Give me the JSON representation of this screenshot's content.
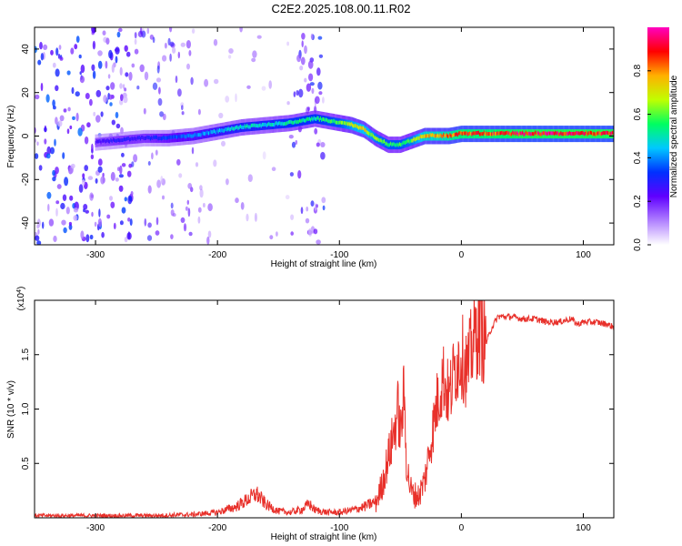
{
  "figure": {
    "title": "C2E2.2025.108.00.11.R02"
  },
  "chart_data": [
    {
      "type": "heatmap",
      "title": "C2E2.2025.108.00.11.R02",
      "xlabel": "Height of straight line (km)",
      "ylabel": "Frequency (Hz)",
      "xlim": [
        -350,
        125
      ],
      "ylim": [
        -50,
        50
      ],
      "x_ticks": [
        -300,
        -200,
        -100,
        0,
        100
      ],
      "y_ticks": [
        -40,
        -20,
        0,
        20,
        40
      ],
      "colorbar": {
        "label": "Normalized spectral amplitude",
        "range": [
          0,
          1
        ],
        "ticks": [
          "0.0",
          "0.2",
          "0.4",
          "0.6",
          "0.8"
        ],
        "colormap": [
          "#ffffff",
          "#b080ff",
          "#6000ff",
          "#0030ff",
          "#00c8ff",
          "#00ff60",
          "#c0ff00",
          "#ffb000",
          "#ff0000",
          "#ff00c0"
        ]
      },
      "ridge": {
        "x": [
          -300,
          -280,
          -260,
          -240,
          -220,
          -200,
          -180,
          -160,
          -140,
          -120,
          -100,
          -90,
          -80,
          -70,
          -60,
          -50,
          -40,
          -30,
          -20,
          -10,
          0,
          20,
          50,
          80,
          100,
          125
        ],
        "y": [
          -3,
          -2,
          -1,
          -1,
          0,
          2,
          4,
          5,
          6,
          8,
          6,
          5,
          3,
          -1,
          -4,
          -4,
          -2,
          0,
          0,
          0,
          1,
          1,
          1,
          1,
          1,
          1
        ],
        "amplitude": [
          0.25,
          0.3,
          0.3,
          0.35,
          0.4,
          0.45,
          0.5,
          0.5,
          0.55,
          0.55,
          0.6,
          0.7,
          0.75,
          0.65,
          0.6,
          0.6,
          0.65,
          0.8,
          0.8,
          0.85,
          0.9,
          0.9,
          0.95,
          0.95,
          0.95,
          0.95
        ]
      },
      "noise_regions": [
        {
          "x_range": [
            -350,
            -270
          ],
          "density": 0.9
        },
        {
          "x_range": [
            -270,
            -220
          ],
          "density": 0.5
        },
        {
          "x_range": [
            -220,
            -180
          ],
          "density": 0.2
        },
        {
          "x_range": [
            -180,
            -140
          ],
          "density": 0.15
        },
        {
          "x_range": [
            -140,
            -112
          ],
          "density": 0.7
        }
      ]
    },
    {
      "type": "line",
      "xlabel": "Height of straight line (km)",
      "ylabel": "SNR (10 * v/v)",
      "scale_label": "(x10^4)",
      "xlim": [
        -350,
        125
      ],
      "ylim": [
        0,
        2.0
      ],
      "x_ticks": [
        -300,
        -200,
        -100,
        0,
        100
      ],
      "y_ticks": [
        "0.5",
        "1.0",
        "1.5"
      ],
      "series": [
        {
          "color": "#e8302a",
          "x": [
            -350,
            -300,
            -250,
            -220,
            -200,
            -185,
            -175,
            -168,
            -160,
            -150,
            -140,
            -130,
            -125,
            -120,
            -110,
            -100,
            -90,
            -80,
            -70,
            -65,
            -60,
            -55,
            -52,
            -50,
            -47,
            -45,
            -42,
            -40,
            -35,
            -30,
            -25,
            -20,
            -15,
            -10,
            -5,
            0,
            5,
            10,
            15,
            20,
            25,
            30,
            40,
            50,
            60,
            70,
            80,
            90,
            95,
            100,
            110,
            120,
            125
          ],
          "y": [
            0.02,
            0.02,
            0.02,
            0.03,
            0.05,
            0.1,
            0.17,
            0.22,
            0.12,
            0.06,
            0.05,
            0.08,
            0.13,
            0.07,
            0.05,
            0.05,
            0.07,
            0.1,
            0.15,
            0.3,
            0.55,
            0.8,
            1.0,
            0.75,
            1.15,
            0.5,
            0.28,
            0.22,
            0.2,
            0.35,
            0.7,
            1.05,
            1.3,
            1.1,
            1.4,
            1.5,
            1.35,
            1.65,
            1.75,
            1.6,
            1.75,
            1.85,
            1.85,
            1.83,
            1.83,
            1.8,
            1.8,
            1.83,
            1.78,
            1.8,
            1.8,
            1.78,
            1.75
          ]
        }
      ]
    }
  ]
}
